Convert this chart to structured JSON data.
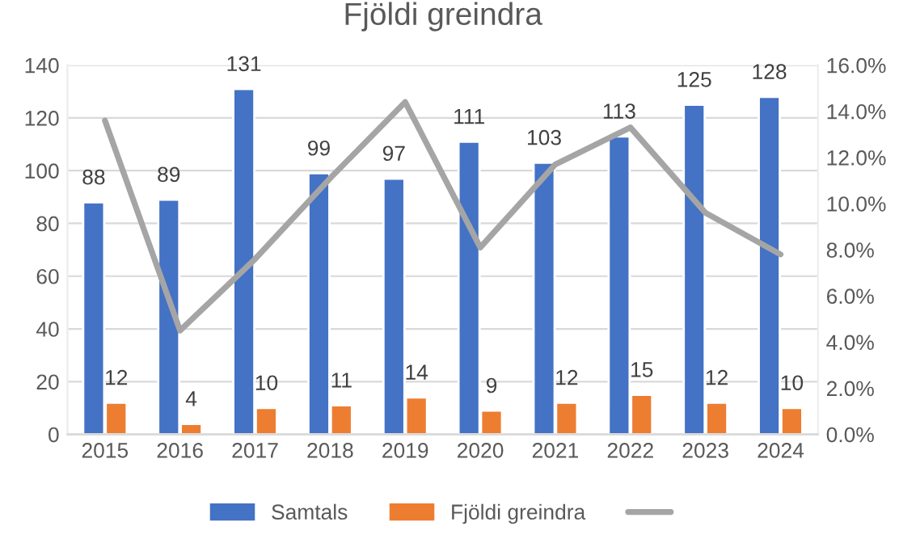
{
  "chart_data": {
    "type": "bar",
    "title": "Fjöldi greindra",
    "categories": [
      "2015",
      "2016",
      "2017",
      "2018",
      "2019",
      "2020",
      "2021",
      "2022",
      "2023",
      "2024"
    ],
    "series": [
      {
        "name": "Samtals",
        "color": "#4472c4",
        "values": [
          88,
          89,
          131,
          99,
          97,
          111,
          103,
          113,
          125,
          128
        ],
        "value_labels": [
          "88",
          "89",
          "131",
          "99",
          "97",
          "111",
          "103",
          "113",
          "125",
          "128"
        ]
      },
      {
        "name": "Fjöldi greindra",
        "color": "#ed7d31",
        "values": [
          12,
          4,
          10,
          11,
          14,
          9,
          12,
          15,
          12,
          10
        ],
        "value_labels": [
          "12",
          "4",
          "10",
          "11",
          "14",
          "9",
          "12",
          "15",
          "12",
          "10"
        ]
      },
      {
        "type": "line",
        "axis": "y2",
        "color": "#a5a5a5",
        "values": [
          13.6,
          4.5,
          7.6,
          11.1,
          14.4,
          8.1,
          11.7,
          13.3,
          9.6,
          7.8
        ]
      }
    ],
    "ylim": [
      0,
      140
    ],
    "yticks": [
      0,
      20,
      40,
      60,
      80,
      100,
      120,
      140
    ],
    "y2lim": [
      0,
      16
    ],
    "y2ticks": [
      {
        "value": 0,
        "label": "0.0%"
      },
      {
        "value": 2,
        "label": "2.0%"
      },
      {
        "value": 4,
        "label": "4.0%"
      },
      {
        "value": 6,
        "label": "6.0%"
      },
      {
        "value": 8,
        "label": "8.0%"
      },
      {
        "value": 10,
        "label": "10.0%"
      },
      {
        "value": 12,
        "label": "12.0%"
      },
      {
        "value": 14,
        "label": "14.0%"
      },
      {
        "value": 16,
        "label": "16.0%"
      }
    ],
    "grid": "y",
    "legend": "bottom",
    "marker": "none",
    "line_style": "solid"
  }
}
